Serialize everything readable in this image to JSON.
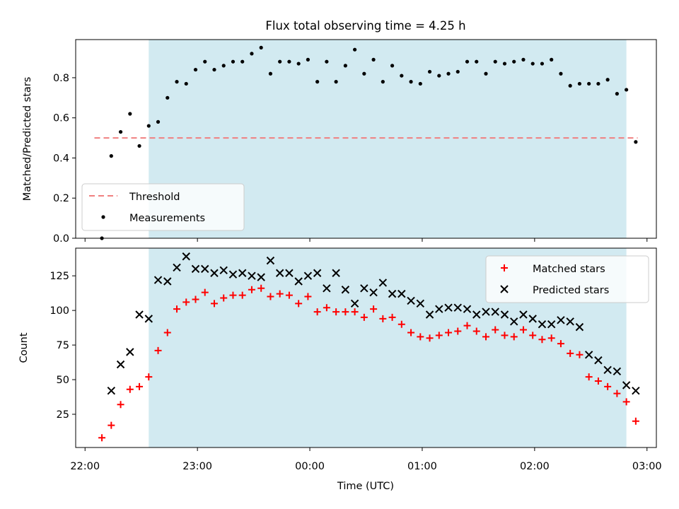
{
  "figure_title": "Flux total observing time = 4.25 h",
  "colors": {
    "shade": "#add8e6",
    "threshold": "#f08080",
    "measurements": "#000000",
    "matched": "#ff0000",
    "predicted": "#000000"
  },
  "chart_data": [
    {
      "type": "scatter",
      "title": "Flux total observing time = 4.25 h",
      "xlabel": "",
      "ylabel": "Matched/Predicted stars",
      "xlim": [
        "21:55",
        "03:05"
      ],
      "ylim": [
        0,
        0.99
      ],
      "y_ticks": [
        0.0,
        0.2,
        0.4,
        0.6,
        0.8
      ],
      "y_tick_labels": [
        "0.0",
        "0.2",
        "0.4",
        "0.6",
        "0.8"
      ],
      "shaded_region": [
        "22:34",
        "02:49"
      ],
      "threshold": {
        "name": "Threshold",
        "value": 0.5,
        "x_range": [
          "22:05",
          "02:55"
        ],
        "style": "dashed"
      },
      "legend": {
        "position": "lower-left",
        "entries": [
          "Threshold",
          "Measurements"
        ]
      },
      "series": [
        {
          "name": "Measurements",
          "marker": "dot",
          "x": [
            "22:09",
            "22:14",
            "22:19",
            "22:24",
            "22:29",
            "22:34",
            "22:39",
            "22:44",
            "22:49",
            "22:54",
            "22:59",
            "23:04",
            "23:09",
            "23:14",
            "23:19",
            "23:24",
            "23:29",
            "23:34",
            "23:39",
            "23:44",
            "23:49",
            "23:54",
            "23:59",
            "00:04",
            "00:09",
            "00:14",
            "00:19",
            "00:24",
            "00:29",
            "00:34",
            "00:39",
            "00:44",
            "00:49",
            "00:54",
            "00:59",
            "01:04",
            "01:09",
            "01:14",
            "01:19",
            "01:24",
            "01:29",
            "01:34",
            "01:39",
            "01:44",
            "01:49",
            "01:54",
            "01:59",
            "02:04",
            "02:09",
            "02:14",
            "02:19",
            "02:24",
            "02:29",
            "02:34",
            "02:39",
            "02:44",
            "02:49",
            "02:54"
          ],
          "y": [
            0.0,
            0.41,
            0.53,
            0.62,
            0.46,
            0.56,
            0.58,
            0.7,
            0.78,
            0.77,
            0.84,
            0.88,
            0.84,
            0.86,
            0.88,
            0.88,
            0.92,
            0.95,
            0.82,
            0.88,
            0.88,
            0.87,
            0.89,
            0.78,
            0.88,
            0.78,
            0.86,
            0.94,
            0.82,
            0.89,
            0.78,
            0.86,
            0.81,
            0.78,
            0.77,
            0.83,
            0.81,
            0.82,
            0.83,
            0.88,
            0.88,
            0.82,
            0.88,
            0.87,
            0.88,
            0.89,
            0.87,
            0.87,
            0.89,
            0.82,
            0.76,
            0.77,
            0.77,
            0.77,
            0.79,
            0.72,
            0.74,
            0.48
          ]
        }
      ]
    },
    {
      "type": "scatter",
      "title": "",
      "xlabel": "Time (UTC)",
      "ylabel": "Count",
      "xlim": [
        "21:55",
        "03:05"
      ],
      "ylim": [
        1,
        145
      ],
      "x_ticks": [
        "22:00",
        "23:00",
        "00:00",
        "01:00",
        "02:00",
        "03:00"
      ],
      "y_ticks": [
        25,
        50,
        75,
        100,
        125
      ],
      "y_tick_labels": [
        "25",
        "50",
        "75",
        "100",
        "125"
      ],
      "shaded_region": [
        "22:34",
        "02:49"
      ],
      "legend": {
        "position": "upper-right",
        "entries": [
          "Matched stars",
          "Predicted stars"
        ]
      },
      "series": [
        {
          "name": "Matched stars",
          "marker": "plus",
          "x": [
            "22:09",
            "22:14",
            "22:19",
            "22:24",
            "22:29",
            "22:34",
            "22:39",
            "22:44",
            "22:49",
            "22:54",
            "22:59",
            "23:04",
            "23:09",
            "23:14",
            "23:19",
            "23:24",
            "23:29",
            "23:34",
            "23:39",
            "23:44",
            "23:49",
            "23:54",
            "23:59",
            "00:04",
            "00:09",
            "00:14",
            "00:19",
            "00:24",
            "00:29",
            "00:34",
            "00:39",
            "00:44",
            "00:49",
            "00:54",
            "00:59",
            "01:04",
            "01:09",
            "01:14",
            "01:19",
            "01:24",
            "01:29",
            "01:34",
            "01:39",
            "01:44",
            "01:49",
            "01:54",
            "01:59",
            "02:04",
            "02:09",
            "02:14",
            "02:19",
            "02:24",
            "02:29",
            "02:34",
            "02:39",
            "02:44",
            "02:49",
            "02:54"
          ],
          "y": [
            8,
            17,
            32,
            43,
            45,
            52,
            71,
            84,
            101,
            106,
            108,
            113,
            105,
            109,
            111,
            111,
            115,
            116,
            110,
            112,
            111,
            105,
            110,
            99,
            102,
            99,
            99,
            99,
            95,
            101,
            94,
            95,
            90,
            84,
            81,
            80,
            82,
            84,
            85,
            89,
            85,
            81,
            86,
            82,
            81,
            86,
            82,
            79,
            80,
            76,
            69,
            68,
            52,
            49,
            45,
            40,
            34,
            20
          ]
        },
        {
          "name": "Predicted stars",
          "marker": "x",
          "x": [
            "22:14",
            "22:19",
            "22:24",
            "22:29",
            "22:34",
            "22:39",
            "22:44",
            "22:49",
            "22:54",
            "22:59",
            "23:04",
            "23:09",
            "23:14",
            "23:19",
            "23:24",
            "23:29",
            "23:34",
            "23:39",
            "23:44",
            "23:49",
            "23:54",
            "23:59",
            "00:04",
            "00:09",
            "00:14",
            "00:19",
            "00:24",
            "00:29",
            "00:34",
            "00:39",
            "00:44",
            "00:49",
            "00:54",
            "00:59",
            "01:04",
            "01:09",
            "01:14",
            "01:19",
            "01:24",
            "01:29",
            "01:34",
            "01:39",
            "01:44",
            "01:49",
            "01:54",
            "01:59",
            "02:04",
            "02:09",
            "02:14",
            "02:19",
            "02:24",
            "02:29",
            "02:34",
            "02:39",
            "02:44",
            "02:49",
            "02:54"
          ],
          "y": [
            42,
            61,
            70,
            97,
            94,
            122,
            121,
            131,
            139,
            130,
            130,
            127,
            129,
            126,
            127,
            125,
            124,
            136,
            127,
            127,
            121,
            125,
            127,
            116,
            127,
            115,
            105,
            116,
            113,
            120,
            112,
            112,
            107,
            105,
            97,
            101,
            102,
            102,
            101,
            97,
            99,
            99,
            97,
            92,
            97,
            94,
            90,
            90,
            93,
            92,
            88,
            68,
            64,
            57,
            56,
            46,
            42
          ]
        }
      ]
    }
  ]
}
